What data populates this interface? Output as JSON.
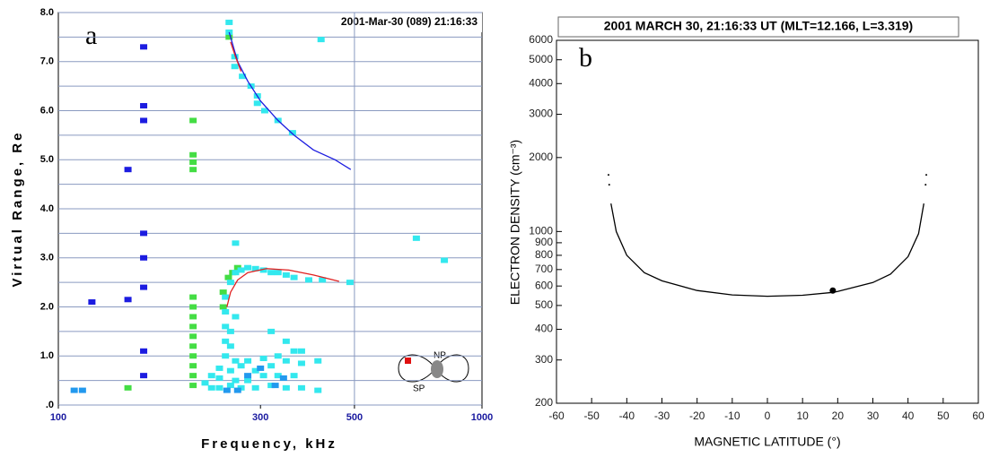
{
  "chart_data": [
    {
      "type": "plasmagram",
      "panel_label": "a",
      "annotation": "2001-Mar-30 (089) 21:16:33",
      "xlabel": "Frequency, kHz",
      "ylabel": "Virtual Range, Re",
      "xscale": "log",
      "xlim": [
        100,
        1000
      ],
      "xticks": [
        100,
        300,
        500,
        1000
      ],
      "ylim": [
        0,
        8
      ],
      "yticks": [
        {
          "value": 0,
          "label": ".0"
        },
        {
          "value": 1,
          "label": "1.0"
        },
        {
          "value": 2,
          "label": "2.0"
        },
        {
          "value": 3,
          "label": "3.0"
        },
        {
          "value": 4,
          "label": "4.0"
        },
        {
          "value": 5,
          "label": "5.0"
        },
        {
          "value": 6,
          "label": "6.0"
        },
        {
          "value": 7,
          "label": "7.0"
        },
        {
          "value": 8,
          "label": "8.0"
        }
      ],
      "minor_yticks": [
        0.5,
        1.5,
        2.5,
        3.5,
        4.5,
        5.5,
        6.5,
        7.5
      ],
      "vgrid": [
        500
      ],
      "grid": true,
      "orbit_labels": [
        "NP",
        "SP"
      ],
      "series": [
        {
          "style": "cells",
          "color": "#1c1ce0",
          "x": [
            159,
            159,
            159,
            159,
            159,
            159,
            159,
            159,
            146,
            146,
            120
          ],
          "values": [
            7.3,
            6.1,
            5.8,
            3.5,
            3.0,
            2.4,
            1.1,
            0.6,
            4.8,
            2.15,
            2.1
          ]
        },
        {
          "style": "cells",
          "color": "#44dd44",
          "x": [
            208,
            208,
            208,
            208,
            208,
            208,
            208,
            208,
            208,
            208,
            208,
            208,
            208,
            208,
            146,
            245,
            245,
            252,
            258,
            265,
            253
          ],
          "values": [
            5.8,
            5.1,
            4.95,
            4.8,
            2.2,
            2.0,
            1.8,
            1.6,
            1.4,
            1.2,
            1.0,
            0.8,
            0.6,
            0.4,
            0.35,
            2.3,
            2.0,
            2.6,
            2.7,
            2.8,
            7.5
          ]
        },
        {
          "style": "cells",
          "color": "#33e8ee",
          "x": [
            253,
            253,
            261,
            261,
            272,
            285,
            295,
            295,
            307,
            330,
            357,
            417,
            700,
            815,
            488,
            262,
            240,
            240,
            240,
            248,
            248,
            248,
            248,
            248,
            255,
            255,
            255,
            255,
            255,
            262,
            262,
            262,
            262,
            270,
            270,
            270,
            280,
            280,
            280,
            292,
            292,
            292,
            305,
            305,
            305,
            318,
            318,
            318,
            318,
            330,
            330,
            330,
            345,
            345,
            345,
            345,
            360,
            360,
            360,
            375,
            375,
            375,
            390,
            410,
            410,
            420,
            230,
            230,
            222
          ],
          "values": [
            7.8,
            7.6,
            7.1,
            6.9,
            6.7,
            6.5,
            6.3,
            6.15,
            6.0,
            5.8,
            5.55,
            7.45,
            3.4,
            2.95,
            2.5,
            3.3,
            0.35,
            0.55,
            0.75,
            1.0,
            1.3,
            1.6,
            1.9,
            2.2,
            0.4,
            0.7,
            1.2,
            1.5,
            2.5,
            0.5,
            0.9,
            1.8,
            2.7,
            0.35,
            0.8,
            2.75,
            0.5,
            0.9,
            2.8,
            0.35,
            0.7,
            2.78,
            0.6,
            0.95,
            2.75,
            0.4,
            0.8,
            1.5,
            2.7,
            0.6,
            1.0,
            2.7,
            0.35,
            0.9,
            1.3,
            2.65,
            0.6,
            1.1,
            2.6,
            0.35,
            0.85,
            1.1,
            2.55,
            0.3,
            0.9,
            2.55,
            0.35,
            0.6,
            0.45
          ]
        },
        {
          "style": "cells",
          "color": "#2299ee",
          "x": [
            250,
            265,
            280,
            300,
            325,
            340,
            109,
            114
          ],
          "values": [
            0.3,
            0.3,
            0.6,
            0.75,
            0.4,
            0.55,
            0.3,
            0.3
          ]
        },
        {
          "style": "line",
          "color": "#1c1ce0",
          "x": [
            253,
            265,
            280,
            300,
            330,
            360,
            400,
            450,
            490
          ],
          "values": [
            7.6,
            7.0,
            6.6,
            6.2,
            5.8,
            5.5,
            5.2,
            5.0,
            4.8
          ]
        },
        {
          "style": "line",
          "color": "#e02020",
          "x": [
            255,
            262,
            270
          ],
          "values": [
            7.4,
            7.1,
            6.8
          ]
        },
        {
          "style": "line",
          "color": "#e02020",
          "x": [
            250,
            255,
            265,
            280,
            310,
            350,
            400,
            460
          ],
          "values": [
            2.0,
            2.3,
            2.55,
            2.7,
            2.78,
            2.75,
            2.65,
            2.52
          ]
        }
      ]
    },
    {
      "type": "line",
      "panel_label": "b",
      "title": "2001 MARCH 30, 21:16:33 UT (MLT=12.166, L=3.319)",
      "xlabel": "MAGNETIC LATITUDE (°)",
      "ylabel": "ELECTRON DENSITY (cm⁻³)",
      "xlim": [
        -60,
        60
      ],
      "xticks": [
        -60,
        -50,
        -40,
        -30,
        -20,
        -10,
        0,
        10,
        20,
        30,
        40,
        50,
        60
      ],
      "yscale": "log",
      "ylim": [
        200,
        6000
      ],
      "yticks": [
        200,
        300,
        400,
        500,
        600,
        700,
        800,
        900,
        1000,
        2000,
        3000,
        4000,
        5000,
        6000
      ],
      "series": [
        {
          "style": "line",
          "color": "#000000",
          "x": [
            -44.5,
            -43,
            -40,
            -35,
            -30,
            -20,
            -10,
            0,
            10,
            18.6,
            20,
            30,
            35,
            40,
            43,
            44.5
          ],
          "values": [
            1300,
            1000,
            800,
            680,
            630,
            575,
            552,
            545,
            550,
            565,
            570,
            620,
            670,
            790,
            980,
            1300
          ]
        },
        {
          "style": "dots",
          "color": "#000000",
          "x": [
            -45,
            -45.2,
            45,
            45.2
          ],
          "values": [
            1550,
            1700,
            1550,
            1700
          ]
        },
        {
          "style": "marker",
          "color": "#000000",
          "x": [
            18.6
          ],
          "values": [
            575
          ]
        }
      ]
    }
  ]
}
